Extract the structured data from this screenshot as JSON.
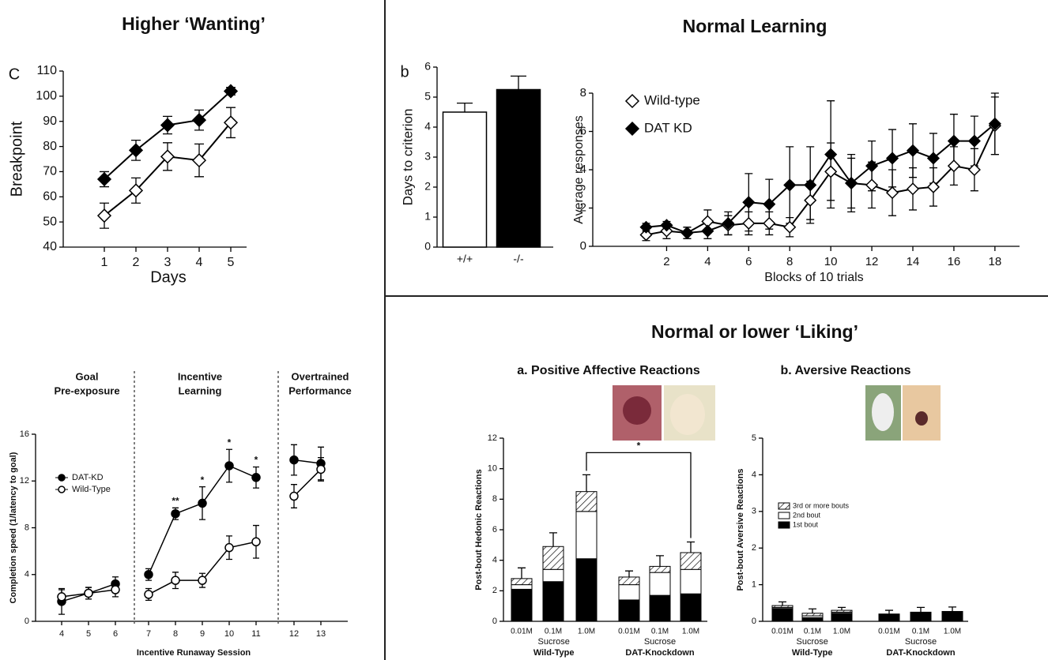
{
  "sections": [
    "Higher ‘Wanting’",
    "Normal Learning",
    "Normal or lower ‘Liking’"
  ],
  "chart_data": [
    {
      "type": "line",
      "panel_label": "C",
      "ylabel": "Breakpoint",
      "xlabel": "Days",
      "x": [
        1,
        2,
        3,
        4,
        5
      ],
      "xlim": [
        -0.3,
        5.5
      ],
      "xticks": [
        1,
        2,
        3,
        4,
        5
      ],
      "ylim": [
        40,
        110
      ],
      "yticks": [
        40,
        50,
        60,
        70,
        80,
        90,
        100,
        110
      ],
      "series": [
        {
          "marker": "diamond-filled",
          "color": "#000000",
          "values": [
            67,
            78.5,
            88.5,
            90.5,
            102
          ],
          "errors": [
            3,
            4,
            3.5,
            4,
            1.5
          ]
        },
        {
          "marker": "diamond-open",
          "color": "#000000",
          "values": [
            52.5,
            62.5,
            76,
            74.5,
            89.5
          ],
          "errors": [
            5,
            5,
            5.5,
            6.5,
            6
          ]
        }
      ]
    },
    {
      "type": "bar",
      "panel_label": "b",
      "ylabel": "Days to criterion",
      "categories": [
        "+/+",
        "-/-"
      ],
      "values": [
        4.5,
        5.25
      ],
      "errors": [
        0.3,
        0.45
      ],
      "colors": [
        "#ffffff",
        "#000000"
      ],
      "ylim": [
        0,
        6
      ],
      "yticks": [
        0,
        1,
        2,
        3,
        4,
        5,
        6
      ]
    },
    {
      "type": "line",
      "ylabel": "Average responses",
      "xlabel": "Blocks of 10 trials",
      "legend": "upper left",
      "x": [
        1,
        2,
        3,
        4,
        5,
        6,
        7,
        8,
        9,
        10,
        11,
        12,
        13,
        14,
        15,
        16,
        17,
        18
      ],
      "xlim": [
        -1.6,
        19.2
      ],
      "xticks": [
        2,
        4,
        6,
        8,
        10,
        12,
        14,
        16,
        18
      ],
      "ylim": [
        0,
        8
      ],
      "yticks": [
        0,
        2,
        4,
        6,
        8
      ],
      "series": [
        {
          "name": "Wild-type",
          "marker": "diamond-open",
          "color": "#000000",
          "values": [
            0.6,
            0.8,
            0.7,
            1.3,
            1.1,
            1.2,
            1.2,
            1.0,
            2.4,
            3.9,
            3.3,
            3.2,
            2.8,
            3.0,
            3.1,
            4.2,
            4.0,
            6.3
          ],
          "errors": [
            0.3,
            0.4,
            0.3,
            0.6,
            0.5,
            0.6,
            0.6,
            0.5,
            1.0,
            1.5,
            1.5,
            1.2,
            1.2,
            1.1,
            1.0,
            1.0,
            1.1,
            1.5
          ]
        },
        {
          "name": "DAT KD",
          "marker": "diamond-filled",
          "color": "#000000",
          "values": [
            1.0,
            1.1,
            0.7,
            0.8,
            1.2,
            2.3,
            2.2,
            3.2,
            3.2,
            4.8,
            3.3,
            4.2,
            4.6,
            5.0,
            4.6,
            5.5,
            5.5,
            6.4
          ],
          "errors": [
            0.2,
            0.2,
            0.3,
            0.4,
            0.6,
            1.5,
            1.3,
            2.0,
            2.0,
            2.8,
            1.3,
            1.3,
            1.5,
            1.4,
            1.3,
            1.4,
            1.3,
            1.6
          ]
        }
      ]
    },
    {
      "type": "line",
      "ylabel": "Completion speed (1/latency to goal)",
      "xlabel": "Incentive Runaway Session",
      "ylim": [
        0,
        16
      ],
      "yticks": [
        0,
        4,
        8,
        12,
        16
      ],
      "legend": "upper left",
      "legend_entries": [
        {
          "name": "DAT-KD",
          "marker": "circle-filled"
        },
        {
          "name": "Wild-Type",
          "marker": "circle-open"
        }
      ],
      "phases": [
        {
          "title": [
            "Goal",
            "Pre-exposure"
          ],
          "categories": [
            "4",
            "5",
            "6"
          ],
          "series": [
            {
              "values": [
                1.7,
                2.4,
                3.2
              ],
              "errors": [
                1.1,
                0.5,
                0.6
              ]
            },
            {
              "values": [
                2.1,
                2.4,
                2.7
              ],
              "errors": [
                0.6,
                0.5,
                0.6
              ]
            }
          ]
        },
        {
          "title": [
            "Incentive",
            "Learning"
          ],
          "categories": [
            "7",
            "8",
            "9",
            "10",
            "11"
          ],
          "series": [
            {
              "values": [
                4.0,
                9.2,
                10.1,
                13.3,
                12.3
              ],
              "errors": [
                0.5,
                0.5,
                1.4,
                1.4,
                0.9
              ]
            },
            {
              "values": [
                2.3,
                3.5,
                3.5,
                6.3,
                6.8
              ],
              "errors": [
                0.5,
                0.7,
                0.6,
                1.0,
                1.4
              ]
            }
          ],
          "significance": [
            null,
            "**",
            "*",
            "*",
            "*"
          ]
        },
        {
          "title": [
            "Overtrained",
            "Performance"
          ],
          "categories": [
            "12",
            "13"
          ],
          "series": [
            {
              "values": [
                13.8,
                13.5
              ],
              "errors": [
                1.3,
                1.4
              ]
            },
            {
              "values": [
                10.7,
                13.0
              ],
              "errors": [
                1.0,
                1.0
              ]
            }
          ]
        }
      ]
    },
    {
      "type": "bar",
      "stacked": true,
      "title": "a. Positive Affective Reactions",
      "ylabel": "Post-bout Hedonic Reactions",
      "ylim": [
        0,
        12
      ],
      "yticks": [
        0,
        2,
        4,
        6,
        8,
        10,
        12
      ],
      "groups": [
        {
          "categories": [
            "0.01M",
            "0.1M",
            "1.0M"
          ],
          "sublabel": "Sucrose",
          "label": "Wild-Type"
        },
        {
          "categories": [
            "0.01M",
            "0.1M",
            "1.0M"
          ],
          "sublabel": "Sucrose",
          "label": "DAT-Knockdown"
        }
      ],
      "series": [
        {
          "fill": "black",
          "values": [
            2.1,
            2.6,
            4.1,
            1.4,
            1.7,
            1.8
          ]
        },
        {
          "fill": "white",
          "values": [
            0.3,
            0.8,
            3.1,
            1.0,
            1.5,
            1.6
          ]
        },
        {
          "fill": "hatch",
          "values": [
            0.4,
            1.5,
            1.3,
            0.5,
            0.4,
            1.1
          ]
        }
      ],
      "errors": [
        0.7,
        0.9,
        1.1,
        0.4,
        0.7,
        0.7
      ],
      "annotation": "*"
    },
    {
      "type": "bar",
      "stacked": true,
      "title": "b. Aversive Reactions",
      "ylabel": "Post-bout Aversive Reactions",
      "ylim": [
        0,
        5
      ],
      "yticks": [
        0,
        1,
        2,
        3,
        4,
        5
      ],
      "legend": "center left",
      "groups": [
        {
          "categories": [
            "0.01M",
            "0.1M",
            "1.0M"
          ],
          "sublabel": "Sucrose",
          "label": "Wild-Type"
        },
        {
          "categories": [
            "0.01M",
            "0.1M",
            "1.0M"
          ],
          "sublabel": "Sucrose",
          "label": "DAT-Knockdown"
        }
      ],
      "series": [
        {
          "name": "1st bout",
          "fill": "black",
          "values": [
            0.35,
            0.1,
            0.22,
            0.2,
            0.25,
            0.27
          ]
        },
        {
          "name": "2nd bout",
          "fill": "white",
          "values": [
            0.03,
            0.05,
            0.03,
            0,
            0,
            0
          ]
        },
        {
          "name": "3rd or more bouts",
          "fill": "hatch",
          "values": [
            0.05,
            0.07,
            0.05,
            0,
            0,
            0
          ]
        }
      ],
      "errors": [
        0.1,
        0.12,
        0.08,
        0.1,
        0.13,
        0.12
      ]
    }
  ]
}
